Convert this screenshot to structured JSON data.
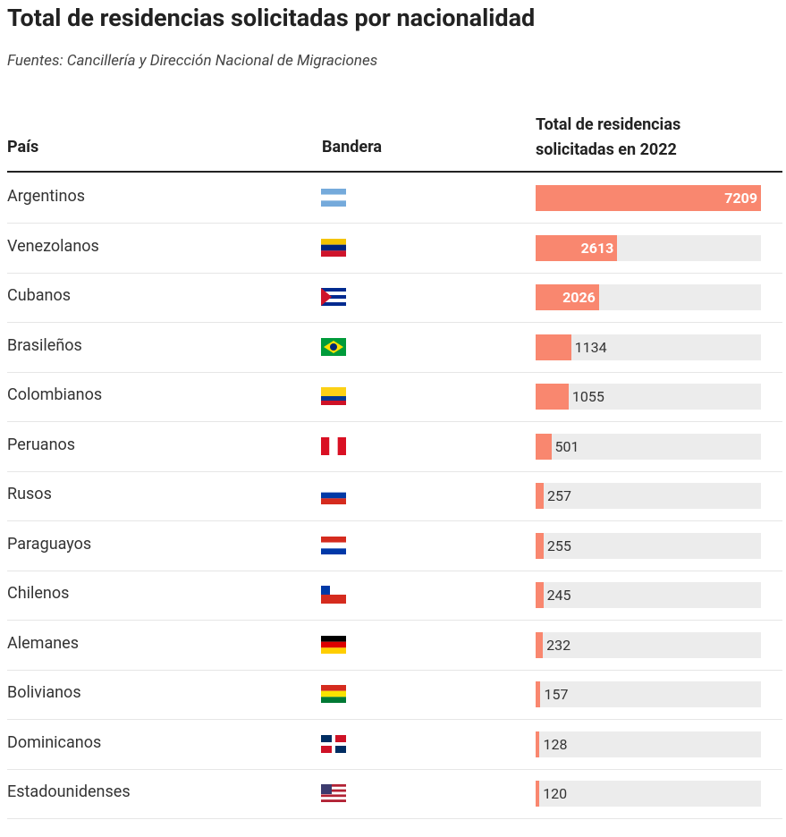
{
  "title": "Total de residencias solicitadas por nacionalidad",
  "subtitle": "Fuentes: Cancillería y Dirección Nacional de Migraciones",
  "table": {
    "headers": [
      "País",
      "Bandera",
      "Total de residencias solicitadas en 2022"
    ],
    "bar_color": "#f9876f",
    "rows": [
      {
        "country": "Argentinos",
        "value": 7209
      },
      {
        "country": "Venezolanos",
        "value": 2613
      },
      {
        "country": "Cubanos",
        "value": 2026
      },
      {
        "country": "Brasileños",
        "value": 1134
      },
      {
        "country": "Colombianos",
        "value": 1055
      },
      {
        "country": "Peruanos",
        "value": 501
      },
      {
        "country": "Rusos",
        "value": 257
      },
      {
        "country": "Paraguayos",
        "value": 255
      },
      {
        "country": "Chilenos",
        "value": 245
      },
      {
        "country": "Alemanes",
        "value": 232
      },
      {
        "country": "Bolivianos",
        "value": 157
      },
      {
        "country": "Dominicanos",
        "value": 128
      },
      {
        "country": "Estadounidenses",
        "value": 120
      }
    ]
  }
}
